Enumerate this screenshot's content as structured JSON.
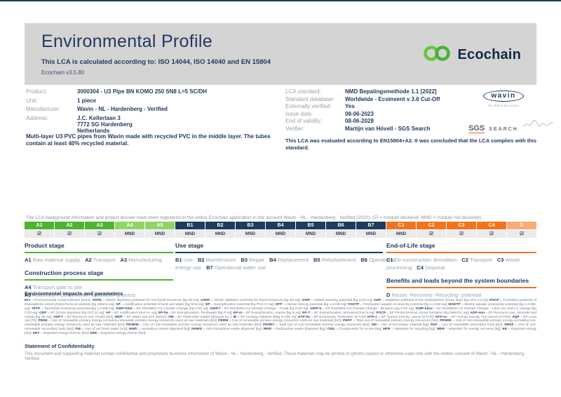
{
  "header": {
    "title": "Environmental Profile",
    "subtitle": "This LCA is calculated according to: ISO 14044, ISO 14040 and EN 15804",
    "version": "Ecochain v3.5.80",
    "logo_text": "Ecochain"
  },
  "product_info": {
    "rows": [
      {
        "label": "Product:",
        "value": "3000304 - U3 Pipe BN KOMO 250 SN8 L=5 SC/DH"
      },
      {
        "label": "Unit:",
        "value": "1 piece"
      },
      {
        "label": "Manufacturer:",
        "value": "Wavin - NL - Hardenberg - Verified"
      },
      {
        "label": "Address:",
        "value": "J.C. Kellerlaan 3\n7772 SG Hardenberg\nNetherlands"
      }
    ],
    "description": "Multi-layer U3 PVC pipes from Wavin made with recycled PVC in the middle layer. The tubes contain at least 40% recycled material."
  },
  "lca_info": {
    "rows": [
      {
        "label": "LCA standard:",
        "value": "NMD Bepalingsmethode 1.1 [2022]"
      },
      {
        "label": "Standard database:",
        "value": "Worldwide - Ecoinvent v 3.6 Cut-Off"
      },
      {
        "label": "Externally verified:",
        "value": "Yes"
      },
      {
        "label": "Issue date:",
        "value": "08-06-2023"
      },
      {
        "label": "End of validity:",
        "value": "08-06-2028"
      },
      {
        "label": "Verifier:",
        "value": "Martijn van Hövell - SGS Search"
      }
    ],
    "evaluation_note": "This LCA was evaluated according to EN15804+A2. It was concluded that the LCA complies with this standard."
  },
  "logos": {
    "wavin": "wavin",
    "wavin_sub": "An Orbia business",
    "sgs": "SGS",
    "sgs_search": "SEARCH"
  },
  "registration_note": "The LCA background information and project dossier have been registered in the online Ecochain application in the account Wavin - NL - Hardenberg - Verified (2020). (☑ = module declared, MND = module not declared).",
  "module_table": {
    "colors": {
      "product": "#4db52d",
      "construction": "#90d465",
      "use": "#1d3c5e",
      "eol": "#f4731d",
      "benefits": "#f9ab72"
    },
    "columns": [
      {
        "code": "A1",
        "status": "☑",
        "group": "product"
      },
      {
        "code": "A2",
        "status": "☑",
        "group": "product"
      },
      {
        "code": "A3",
        "status": "☑",
        "group": "product"
      },
      {
        "code": "A4",
        "status": "MND",
        "group": "construction"
      },
      {
        "code": "A5",
        "status": "MND",
        "group": "construction"
      },
      {
        "code": "B1",
        "status": "MND",
        "group": "use"
      },
      {
        "code": "B2",
        "status": "MND",
        "group": "use"
      },
      {
        "code": "B3",
        "status": "MND",
        "group": "use"
      },
      {
        "code": "B4",
        "status": "MND",
        "group": "use"
      },
      {
        "code": "B5",
        "status": "MND",
        "group": "use"
      },
      {
        "code": "B6",
        "status": "MND",
        "group": "use"
      },
      {
        "code": "B7",
        "status": "MND",
        "group": "use"
      },
      {
        "code": "C1",
        "status": "MND",
        "group": "eol"
      },
      {
        "code": "C2",
        "status": "☑",
        "group": "eol"
      },
      {
        "code": "C3",
        "status": "☑",
        "group": "eol"
      },
      {
        "code": "C4",
        "status": "☑",
        "group": "eol"
      },
      {
        "code": "D",
        "status": "☑",
        "group": "benefits"
      }
    ]
  },
  "stages": {
    "product": {
      "title": "Product stage",
      "items": [
        {
          "code": "A1",
          "label": "Raw material supply"
        },
        {
          "code": "A2",
          "label": "Transport"
        },
        {
          "code": "A3",
          "label": "Manufacturing"
        }
      ]
    },
    "construction": {
      "title": "Construction process stage",
      "items": [
        {
          "code": "A4",
          "label": "Transport gate to site"
        },
        {
          "code": "A5",
          "label": "Assembly / Construction installation process"
        }
      ]
    },
    "use": {
      "title": "Use stage",
      "items": [
        {
          "code": "B1",
          "label": "Use"
        },
        {
          "code": "B2",
          "label": "Maintenance"
        },
        {
          "code": "B3",
          "label": "Repair"
        },
        {
          "code": "B4",
          "label": "Replacement"
        },
        {
          "code": "B5",
          "label": "Refurbishment"
        },
        {
          "code": "B6",
          "label": "Operational energy use"
        },
        {
          "code": "B7",
          "label": "Operational water use"
        }
      ]
    },
    "eol": {
      "title": "End-of-Life stage",
      "items": [
        {
          "code": "C1",
          "label": "De-construction demolition"
        },
        {
          "code": "C2",
          "label": "Transport"
        },
        {
          "code": "C3",
          "label": "Waste processing"
        },
        {
          "code": "C4",
          "label": "Disposal"
        }
      ]
    },
    "benefits": {
      "title": "Benefits and loads beyond the system boundaries",
      "items": [
        {
          "code": "D",
          "label": "Reuse- Recovery- Recycling- potential"
        }
      ]
    }
  },
  "impacts": {
    "title": "Environmental impacts and parameters",
    "definitions": [
      {
        "abbr": "ECI",
        "desc": "= Environmental Costs Indicator [euro]"
      },
      {
        "abbr": "ADPE",
        "desc": "= Abiotic depletion potential for non-fossil resources [kg Sb-eq]"
      },
      {
        "abbr": "ADPF",
        "desc": "= Abiotic depletion potential for fossil resources [kg Sb-eq]"
      },
      {
        "abbr": "GWP",
        "desc": "= Global warming potential [kg CO2-eq]"
      },
      {
        "abbr": "ODP",
        "desc": "= Depletion potential of the stratospheric ozone layer [kg CFC-11-eq]"
      },
      {
        "abbr": "POCP",
        "desc": "= Formation potential of tropospheric ozone photochemical oxidants [kg ethene-eq]"
      },
      {
        "abbr": "AP",
        "desc": "= Acidification potential of land and water [kg SO2-eq]"
      },
      {
        "abbr": "EP",
        "desc": "= Eutrophication potential [kg PO4 3--eq]"
      },
      {
        "abbr": "HTP",
        "desc": "= Human toxicity potential [kg 1,4-DB-eq]"
      },
      {
        "abbr": "FAETP",
        "desc": "= Freshwater aquatic ecotoxicity potential [kg 1,4-DB-eq]"
      },
      {
        "abbr": "MAETP",
        "desc": "= Marine aquatic ecotoxicity potential [kg 1,4-DB-eq]"
      },
      {
        "abbr": "TETP",
        "desc": "= Terrestrial ecotoxicity potential [kg 1,4-DB-eq]"
      },
      {
        "abbr": "GWP-total",
        "desc": "= EF EN15804+A2 Climate Change [kg CO2 eq]"
      },
      {
        "abbr": "GWP-f",
        "desc": "= EF EN15804+A2 Climate Change - Fossil [kg CO2 eq]"
      },
      {
        "abbr": "GWP-b",
        "desc": "= EF EN15804+A2 Climate Change - Biogenic [kg CO2 eq]"
      },
      {
        "abbr": "GWP-luluc",
        "desc": "= EF EN15804+A2 Climate Change - Land use and LU change [kg CO2 eq]"
      },
      {
        "abbr": "ODP",
        "desc": "= EF Ozone depletion [kg CFC11 eq]"
      },
      {
        "abbr": "AP",
        "desc": "= EF Acidification [mol H+ eq]"
      },
      {
        "abbr": "EP-fw",
        "desc": "= EF Eutrophication, freshwater [kg P eq]"
      },
      {
        "abbr": "EP-m",
        "desc": "= EF Eutrophication, marine [kg N eq]"
      },
      {
        "abbr": "EP-T",
        "desc": "= EF Eutrophication, terrestrial [mol N eq]"
      },
      {
        "abbr": "POCP",
        "desc": "= EF Photochemical ozone formation [kg NMVOC eq]"
      },
      {
        "abbr": "ADP-mm",
        "desc": "= EF Resource use, minerals and metals [kg Sb eq]"
      },
      {
        "abbr": "ADP-f",
        "desc": "= EF Resource use, fossils [MJ]"
      },
      {
        "abbr": "WDP",
        "desc": "= EF Water use [m3 depriv.]"
      },
      {
        "abbr": "PM",
        "desc": "= EF Particulate matter [disease inc.]"
      },
      {
        "abbr": "IR",
        "desc": "= EF Ionising radiation [kBq U-235 eq]"
      },
      {
        "abbr": "ETP-fw",
        "desc": "= EF Ecotoxicity, freshwater [CTUe]"
      },
      {
        "abbr": "HTP-c",
        "desc": "= EF Human toxicity, cancer [CTUh]"
      },
      {
        "abbr": "HTP-nc",
        "desc": "= EF Human toxicity, non-cancer [CTUh]"
      },
      {
        "abbr": "SQP",
        "desc": "= EF Land use [Pt]"
      },
      {
        "abbr": "PERE",
        "desc": "= Use of renewable primary energy excluding renewable primary energy resources used as raw materials [MJ]"
      },
      {
        "abbr": "PERM",
        "desc": "= Use of renewable primary energy resources used as raw materials [MJ]"
      },
      {
        "abbr": "PERT",
        "desc": "= Total use of renewable primary energy resources [MJ]"
      },
      {
        "abbr": "PENRE",
        "desc": "= Use of non-renewable primary energy excluding non-renewable primary energy resources used as raw materials [MJ]"
      },
      {
        "abbr": "PENRM",
        "desc": "= Use of non-renewable primary energy resources used as raw materials [MJ]"
      },
      {
        "abbr": "PENRT",
        "desc": "= Total use of non-renewable primary energy resources [MJ]"
      },
      {
        "abbr": "SM",
        "desc": "= Use of secondary material [kg]"
      },
      {
        "abbr": "RSF",
        "desc": "= Use of renewable secondary fuels [MJ]"
      },
      {
        "abbr": "NRSF",
        "desc": "= Use of non-renewable secondary fuels [MJ]"
      },
      {
        "abbr": "FW",
        "desc": "= Use of net fresh water [m3]"
      },
      {
        "abbr": "HWD",
        "desc": "= Hazardous waste disposed [kg]"
      },
      {
        "abbr": "NHWD",
        "desc": "= Non-hazardous waste disposed [kg]"
      },
      {
        "abbr": "RWD",
        "desc": "= Radioactive waste disposed [kg]"
      },
      {
        "abbr": "CRU",
        "desc": "= Components for re-use [kg]"
      },
      {
        "abbr": "MFR",
        "desc": "= Materials for recycling [kg]"
      },
      {
        "abbr": "MER",
        "desc": "= Materials for energy recovery [kg]"
      },
      {
        "abbr": "EE",
        "desc": "= Exported energy [MJ]"
      },
      {
        "abbr": "EET",
        "desc": "= Exported energy thermic [MJ]"
      },
      {
        "abbr": "EEE",
        "desc": "= Exported energy electric [MJ]"
      }
    ]
  },
  "confidentiality": {
    "title": "Statement of Confidentiality",
    "text": "This document and supporting material contain confidential and proprietary business information of Wavin - NL - Hardenberg - Verified. These materials may be printed or (photo) copied or otherwise used only with the written consent of Wavin - NL - Hardenberg - Verified."
  }
}
